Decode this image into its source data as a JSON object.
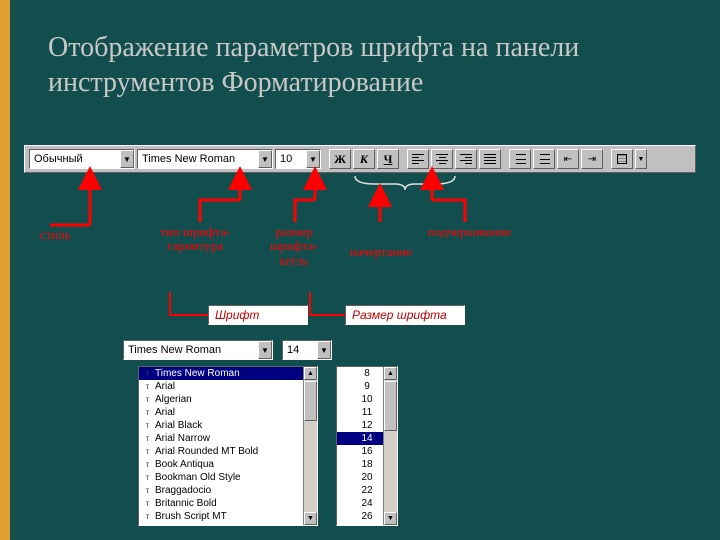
{
  "colors": {
    "bg": "#134e4e",
    "accent": "#e0a030",
    "title": "#c8c8c8",
    "arrow": "#ff0000",
    "selection": "#000080"
  },
  "title": "Отображение параметров шрифта на панели инструментов Форматирование",
  "toolbar": {
    "style_value": "Обычный",
    "font_value": "Times New Roman",
    "size_value": "10",
    "bold_label": "Ж",
    "italic_label": "К",
    "underline_label": "Ч"
  },
  "callouts": {
    "style": "стиль",
    "font_type": "тип шрифта-\nгарнитура",
    "size": "размер\nшрифта-\nкегль",
    "weight": "начертание",
    "underline": "подчеркивание"
  },
  "lower": {
    "font_label": "Шрифт",
    "size_label": "Размер шрифта",
    "combo_font": "Times New Roman",
    "combo_size": "14",
    "font_list": [
      "Times New Roman",
      "Arial",
      "Algerian",
      "Arial",
      "Arial Black",
      "Arial Narrow",
      "Arial Rounded MT Bold",
      "Book Antiqua",
      "Bookman Old Style",
      "Braggadocio",
      "Britannic Bold",
      "Brush Script MT"
    ],
    "font_list_selected": 0,
    "size_list": [
      "8",
      "9",
      "10",
      "11",
      "12",
      "14",
      "16",
      "18",
      "20",
      "22",
      "24",
      "26"
    ],
    "size_list_selected": 5
  }
}
